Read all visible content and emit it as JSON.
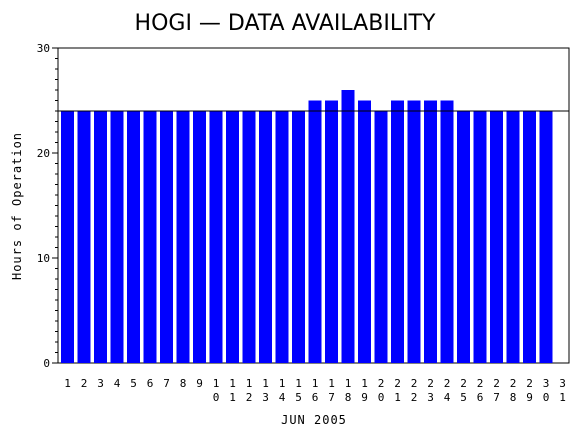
{
  "chart_data": {
    "type": "bar",
    "title": "HOGI — DATA AVAILABILITY",
    "xlabel": "JUN 2005",
    "ylabel": "Hours of Operation",
    "ylim": [
      0,
      30
    ],
    "yticks": [
      0,
      10,
      20,
      30
    ],
    "reference_line": 24,
    "categories": [
      "1",
      "2",
      "3",
      "4",
      "5",
      "6",
      "7",
      "8",
      "9",
      "10",
      "11",
      "12",
      "13",
      "14",
      "15",
      "16",
      "17",
      "18",
      "19",
      "20",
      "21",
      "22",
      "23",
      "24",
      "25",
      "26",
      "27",
      "28",
      "29",
      "30",
      "31"
    ],
    "values": [
      24,
      24,
      24,
      24,
      24,
      24,
      24,
      24,
      24,
      24,
      24,
      24,
      24,
      24,
      24,
      25,
      25,
      26,
      25,
      24,
      25,
      25,
      25,
      25,
      24,
      24,
      24,
      24,
      24,
      24,
      null
    ],
    "bar_color": "#0000ff",
    "grid": false
  }
}
